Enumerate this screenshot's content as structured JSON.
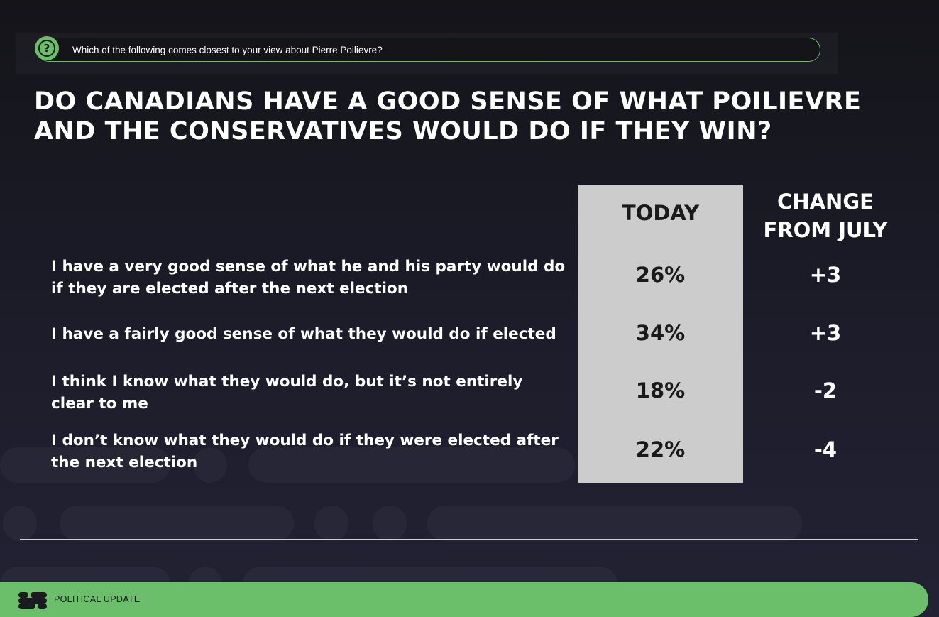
{
  "question": {
    "icon": "question-icon",
    "text": "Which of the following comes closest to your view about Pierre Poilievre?"
  },
  "headline": "DO CANADIANS HAVE A GOOD SENSE OF WHAT POILIEVRE AND THE CONSERVATIVES WOULD DO IF THEY WIN?",
  "table": {
    "col_today": "TODAY",
    "col_change": "CHANGE FROM JULY",
    "rows": [
      {
        "label": "I have a very good sense of what he and his party would do if they are elected after the next election",
        "today": "26%",
        "change": "+3"
      },
      {
        "label": "I have a fairly good sense of what they would do if elected",
        "today": "34%",
        "change": "+3"
      },
      {
        "label": "I think I know what they would do, but it’s not entirely clear to me",
        "today": "18%",
        "change": "-2"
      },
      {
        "label": "I don’t know what they would do if they were elected after the next election",
        "today": "22%",
        "change": "-4"
      }
    ]
  },
  "footer": {
    "logo": "brand-logo-icon",
    "label": "POLITICAL UPDATE"
  },
  "colors": {
    "accent_green": "#6bbf6a",
    "today_column_bg": "#cbcccb",
    "background_dark": "#1b1b28"
  }
}
